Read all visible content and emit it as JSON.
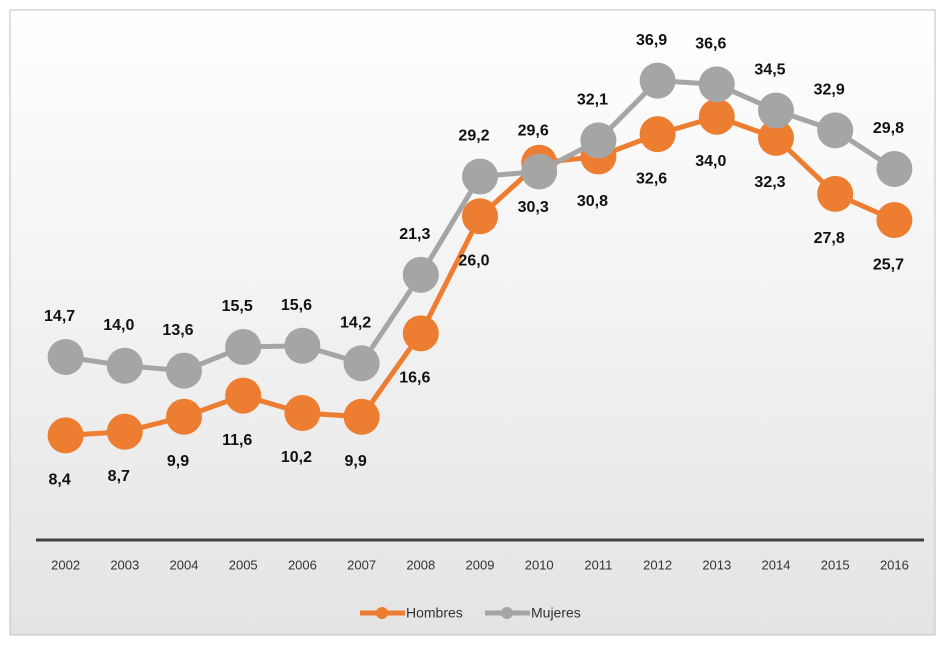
{
  "chart_data": {
    "type": "line",
    "categories": [
      "2002",
      "2003",
      "2004",
      "2005",
      "2006",
      "2007",
      "2008",
      "2009",
      "2010",
      "2011",
      "2012",
      "2013",
      "2014",
      "2015",
      "2016"
    ],
    "series": [
      {
        "name": "Hombres",
        "color": "#ed7d31",
        "values": [
          8.4,
          8.7,
          9.9,
          11.6,
          10.2,
          9.9,
          16.6,
          26.0,
          30.3,
          30.8,
          32.6,
          34.0,
          32.3,
          27.8,
          25.7
        ],
        "value_labels": [
          "8,4",
          "8,7",
          "9,9",
          "11,6",
          "10,2",
          "9,9",
          "16,6",
          "26,0",
          "30,3",
          "30,8",
          "32,6",
          "34,0",
          "32,3",
          "27,8",
          "25,7"
        ]
      },
      {
        "name": "Mujeres",
        "color": "#a5a5a5",
        "values": [
          14.7,
          14.0,
          13.6,
          15.5,
          15.6,
          14.2,
          21.3,
          29.2,
          29.6,
          32.1,
          36.9,
          36.6,
          34.5,
          32.9,
          29.8
        ],
        "value_labels": [
          "14,7",
          "14,0",
          "13,6",
          "15,5",
          "15,6",
          "14,2",
          "21,3",
          "29,2",
          "29,6",
          "32,1",
          "36,9",
          "36,6",
          "34,5",
          "32,9",
          "29,8"
        ]
      }
    ],
    "ylim": [
      0,
      40
    ],
    "legend": "bottom"
  }
}
